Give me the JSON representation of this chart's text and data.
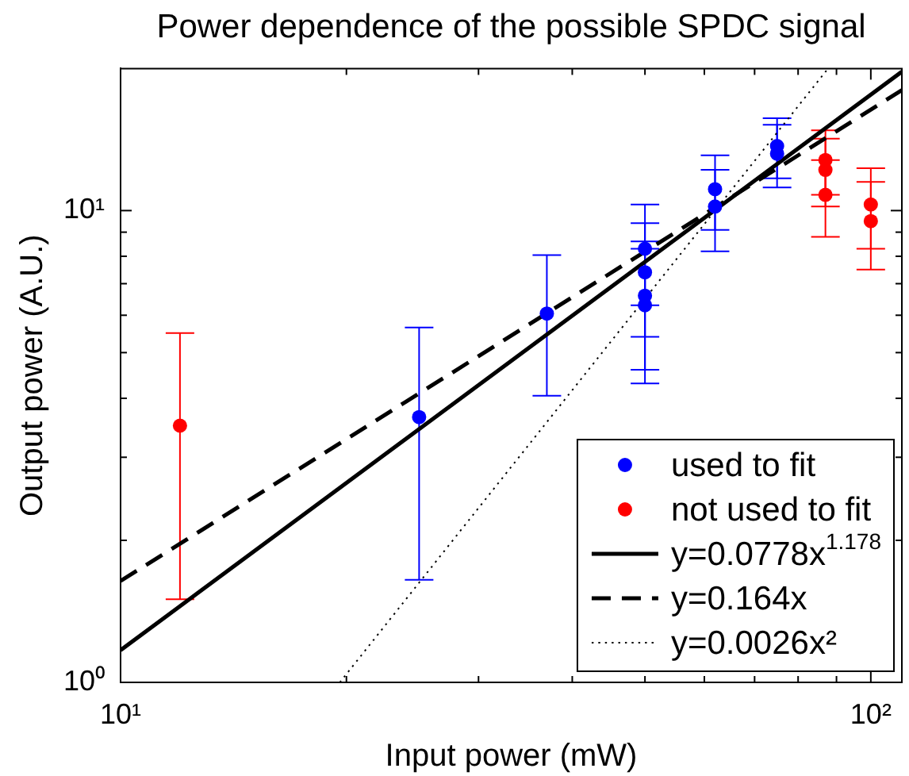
{
  "chart_data": {
    "type": "scatter",
    "title": "Power dependence of the possible SPDC signal",
    "xlabel": "Input power (mW)",
    "ylabel": "Output power (A.U.)",
    "log": "xy",
    "xlim": [
      10,
      110
    ],
    "ylim": [
      1,
      20
    ],
    "xticks": [
      {
        "value": 10,
        "label": "10¹"
      },
      {
        "value": 20,
        "label": null
      },
      {
        "value": 30,
        "label": null
      },
      {
        "value": 40,
        "label": null
      },
      {
        "value": 50,
        "label": null
      },
      {
        "value": 60,
        "label": null
      },
      {
        "value": 70,
        "label": null
      },
      {
        "value": 80,
        "label": null
      },
      {
        "value": 90,
        "label": null
      },
      {
        "value": 100,
        "label": "10²"
      }
    ],
    "yticks": [
      {
        "value": 1,
        "label": "10⁰"
      },
      {
        "value": 2,
        "label": null
      },
      {
        "value": 3,
        "label": null
      },
      {
        "value": 4,
        "label": null
      },
      {
        "value": 5,
        "label": null
      },
      {
        "value": 6,
        "label": null
      },
      {
        "value": 7,
        "label": null
      },
      {
        "value": 8,
        "label": null
      },
      {
        "value": 9,
        "label": null
      },
      {
        "value": 10,
        "label": "10¹"
      }
    ],
    "grid": false,
    "legend": "bottom right",
    "series": [
      {
        "name": "used to fit",
        "color": "#0000ff",
        "marker": "circle",
        "x": [
          25,
          37,
          50,
          50,
          50,
          50,
          62,
          62,
          75,
          75
        ],
        "values": [
          3.65,
          6.05,
          8.3,
          7.4,
          6.6,
          6.3,
          11.1,
          10.2,
          13.7,
          13.2
        ],
        "errors": [
          2,
          2,
          2,
          2,
          2,
          2,
          2,
          2,
          2,
          2
        ]
      },
      {
        "name": "not used to fit",
        "color": "#ff0000",
        "marker": "circle",
        "x": [
          12,
          87,
          87,
          87,
          100,
          100
        ],
        "values": [
          3.5,
          12.8,
          12.2,
          10.8,
          10.3,
          9.5
        ],
        "errors": [
          2,
          2,
          2,
          2,
          2,
          2
        ]
      },
      {
        "name": "y=0.0778x$^{1.178}$",
        "type": "line",
        "color": "#000000",
        "line_style": "solid",
        "marker": "none",
        "x": [
          10,
          110
        ],
        "values": [
          1.17,
          19.7
        ]
      },
      {
        "name": "y=0.164x",
        "type": "line",
        "color": "#000000",
        "line_style": "dashed",
        "marker": "none",
        "x": [
          10,
          110
        ],
        "values": [
          1.64,
          18.0
        ]
      },
      {
        "name": "y=0.0026x²",
        "type": "line",
        "color": "#000000",
        "line_style": "dotted",
        "marker": "none",
        "x": [
          19.6,
          87.7
        ],
        "values": [
          1.0,
          20.0
        ]
      }
    ]
  }
}
